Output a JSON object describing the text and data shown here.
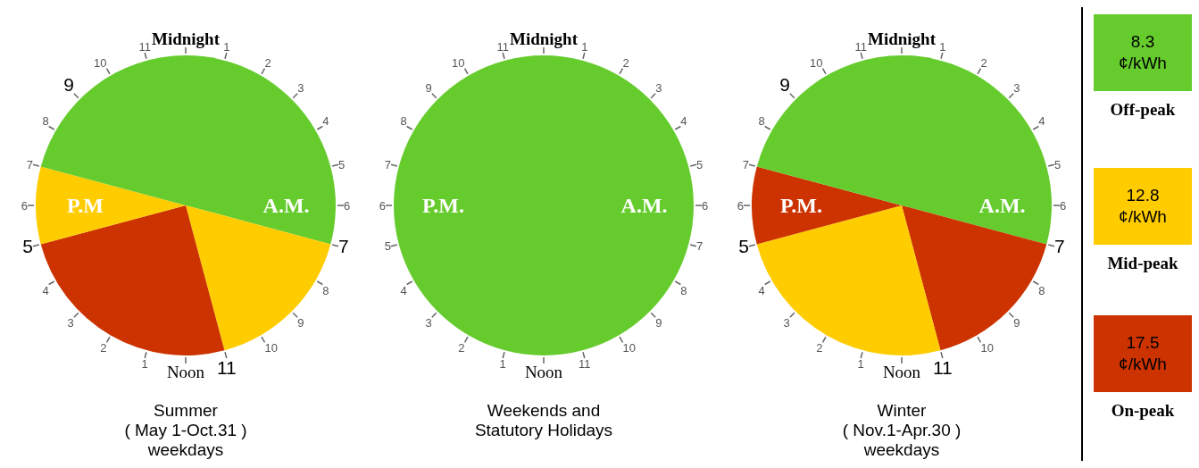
{
  "chart_data": [
    {
      "type": "pie",
      "title": "Summer\n( May 1-Oct.31 )\nweekdays",
      "categories": [
        null,
        null,
        null,
        null,
        null
      ],
      "values": [
        29.17,
        16.67,
        25,
        8.33,
        20.83
      ],
      "colors": [
        "#66cc2e",
        "#ffcc00",
        "#cc3300",
        "#ffcc00",
        "#66cc2e"
      ],
      "annotations": [
        "Midnight",
        "1",
        "2",
        "3",
        "4",
        "5",
        "6",
        null,
        "8",
        "9",
        "10",
        null,
        "Noon",
        "1",
        "2",
        "3",
        "4",
        null,
        "6",
        "7",
        "8",
        null,
        "10",
        "11",
        "P.M",
        "A.M.",
        "7",
        "11",
        "5",
        "9"
      ]
    },
    {
      "type": "pie",
      "title": "Weekends and\nStatutory Holidays",
      "categories": [
        null
      ],
      "values": [
        100
      ],
      "colors": [
        "#66cc2e"
      ],
      "annotations": [
        "Midnight",
        "1",
        "2",
        "3",
        "4",
        "5",
        "6",
        "7",
        "8",
        "9",
        "10",
        "11",
        "Noon",
        "1",
        "2",
        "3",
        "4",
        "5",
        "6",
        "7",
        "8",
        "9",
        "10",
        "11",
        "P.M.",
        "A.M."
      ]
    },
    {
      "type": "pie",
      "title": "Winter\n( Nov.1-Apr.30 )\nweekdays",
      "categories": [
        null,
        null,
        null,
        null,
        null
      ],
      "values": [
        29.17,
        16.67,
        25,
        8.33,
        20.83
      ],
      "colors": [
        "#66cc2e",
        "#cc3300",
        "#ffcc00",
        "#cc3300",
        "#66cc2e"
      ],
      "annotations": [
        "Midnight",
        "1",
        "2",
        "3",
        "4",
        "5",
        "6",
        null,
        "8",
        "9",
        "10",
        null,
        "Noon",
        "1",
        "2",
        "3",
        "4",
        null,
        "6",
        "7",
        "8",
        null,
        "10",
        "11",
        "P.M.",
        "A.M.",
        "7",
        "11",
        "5",
        "9"
      ]
    },
    {
      "type": "other",
      "categories": [
        "Off-peak",
        "Mid-peak",
        "On-peak"
      ],
      "value_labels": [
        "8.3",
        "12.8",
        "17.5"
      ],
      "colors": [
        "#66cc2e",
        "#ffcc00",
        "#cc3300"
      ],
      "clabel": "¢/kWh"
    }
  ]
}
